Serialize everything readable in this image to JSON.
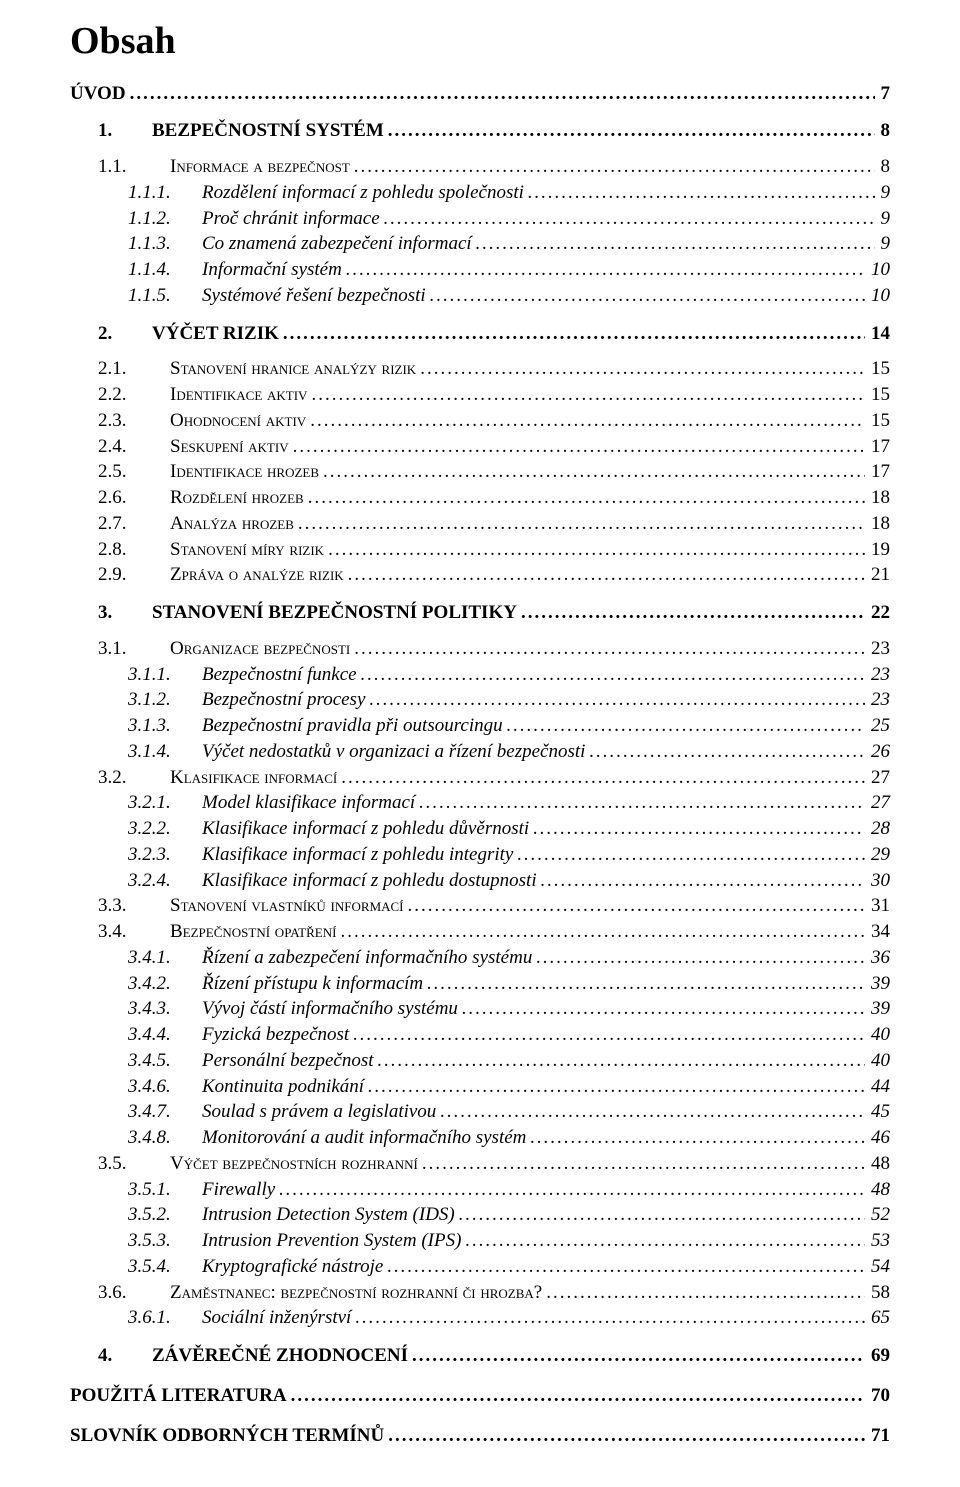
{
  "title": "Obsah",
  "toc": [
    {
      "level": 0,
      "num": "",
      "label": "Úvod",
      "page": "7",
      "nonum": true
    },
    {
      "level": 1,
      "num": "1.",
      "label": "BEZPEČNOSTNÍ SYSTÉM",
      "page": "8"
    },
    {
      "level": 2,
      "num": "1.1.",
      "label": "Informace a bezpečnost",
      "page": "8",
      "first": true
    },
    {
      "level": 3,
      "num": "1.1.1.",
      "label": "Rozdělení informací z pohledu společnosti",
      "page": "9"
    },
    {
      "level": 3,
      "num": "1.1.2.",
      "label": "Proč chránit informace",
      "page": "9"
    },
    {
      "level": 3,
      "num": "1.1.3.",
      "label": "Co znamená zabezpečení informací",
      "page": "9"
    },
    {
      "level": 3,
      "num": "1.1.4.",
      "label": "Informační systém",
      "page": "10"
    },
    {
      "level": 3,
      "num": "1.1.5.",
      "label": "Systémové řešení bezpečnosti",
      "page": "10"
    },
    {
      "level": 1,
      "num": "2.",
      "label": "VÝČET RIZIK",
      "page": "14"
    },
    {
      "level": 2,
      "num": "2.1.",
      "label": "Stanovení hranice analýzy rizik",
      "page": "15",
      "first": true
    },
    {
      "level": 2,
      "num": "2.2.",
      "label": "Identifikace aktiv",
      "page": "15"
    },
    {
      "level": 2,
      "num": "2.3.",
      "label": "Ohodnocení aktiv",
      "page": "15"
    },
    {
      "level": 2,
      "num": "2.4.",
      "label": "Seskupení aktiv",
      "page": "17"
    },
    {
      "level": 2,
      "num": "2.5.",
      "label": "Identifikace hrozeb",
      "page": "17"
    },
    {
      "level": 2,
      "num": "2.6.",
      "label": "Rozdělení hrozeb",
      "page": "18"
    },
    {
      "level": 2,
      "num": "2.7.",
      "label": "Analýza hrozeb",
      "page": "18"
    },
    {
      "level": 2,
      "num": "2.8.",
      "label": "Stanovení míry rizik",
      "page": "19"
    },
    {
      "level": 2,
      "num": "2.9.",
      "label": "Zpráva o analýze rizik",
      "page": "21"
    },
    {
      "level": 1,
      "num": "3.",
      "label": "STANOVENÍ BEZPEČNOSTNÍ POLITIKY",
      "page": "22"
    },
    {
      "level": 2,
      "num": "3.1.",
      "label": "Organizace bezpečnosti",
      "page": "23",
      "first": true
    },
    {
      "level": 3,
      "num": "3.1.1.",
      "label": "Bezpečnostní funkce",
      "page": "23"
    },
    {
      "level": 3,
      "num": "3.1.2.",
      "label": "Bezpečnostní procesy",
      "page": "23"
    },
    {
      "level": 3,
      "num": "3.1.3.",
      "label": "Bezpečnostní pravidla při outsourcingu",
      "page": "25"
    },
    {
      "level": 3,
      "num": "3.1.4.",
      "label": "Výčet nedostatků v organizaci a řízení bezpečnosti",
      "page": "26"
    },
    {
      "level": 2,
      "num": "3.2.",
      "label": "Klasifikace informací",
      "page": "27"
    },
    {
      "level": 3,
      "num": "3.2.1.",
      "label": "Model klasifikace informací",
      "page": "27"
    },
    {
      "level": 3,
      "num": "3.2.2.",
      "label": "Klasifikace informací z pohledu důvěrnosti",
      "page": "28"
    },
    {
      "level": 3,
      "num": "3.2.3.",
      "label": "Klasifikace informací z pohledu integrity",
      "page": "29"
    },
    {
      "level": 3,
      "num": "3.2.4.",
      "label": "Klasifikace informací z pohledu dostupnosti",
      "page": "30"
    },
    {
      "level": 2,
      "num": "3.3.",
      "label": "Stanovení vlastníků informací",
      "page": "31"
    },
    {
      "level": 2,
      "num": "3.4.",
      "label": "Bezpečnostní opatření",
      "page": "34"
    },
    {
      "level": 3,
      "num": "3.4.1.",
      "label": "Řízení a zabezpečení informačního systému",
      "page": "36"
    },
    {
      "level": 3,
      "num": "3.4.2.",
      "label": "Řízení přístupu k informacím",
      "page": "39"
    },
    {
      "level": 3,
      "num": "3.4.3.",
      "label": "Vývoj částí informačního systému",
      "page": "39"
    },
    {
      "level": 3,
      "num": "3.4.4.",
      "label": "Fyzická bezpečnost",
      "page": "40"
    },
    {
      "level": 3,
      "num": "3.4.5.",
      "label": "Personální bezpečnost",
      "page": "40"
    },
    {
      "level": 3,
      "num": "3.4.6.",
      "label": "Kontinuita podnikání",
      "page": "44"
    },
    {
      "level": 3,
      "num": "3.4.7.",
      "label": "Soulad s právem a legislativou",
      "page": "45"
    },
    {
      "level": 3,
      "num": "3.4.8.",
      "label": "Monitorování a audit informačního systém",
      "page": "46"
    },
    {
      "level": 2,
      "num": "3.5.",
      "label": "Výčet bezpečnostních rozhranní",
      "page": "48"
    },
    {
      "level": 3,
      "num": "3.5.1.",
      "label": "Firewally",
      "page": "48"
    },
    {
      "level": 3,
      "num": "3.5.2.",
      "label": "Intrusion Detection System (IDS)",
      "page": "52"
    },
    {
      "level": 3,
      "num": "3.5.3.",
      "label": "Intrusion Prevention System (IPS)",
      "page": "53"
    },
    {
      "level": 3,
      "num": "3.5.4.",
      "label": "Kryptografické nástroje",
      "page": "54"
    },
    {
      "level": 2,
      "num": "3.6.",
      "label": "Zaměstnanec: bezpečnostní rozhranní či hrozba?",
      "page": "58"
    },
    {
      "level": 3,
      "num": "3.6.1.",
      "label": "Sociální inženýrství",
      "page": "65"
    },
    {
      "level": 1,
      "num": "4.",
      "label": "ZÁVĚREČNÉ ZHODNOCENÍ",
      "page": "69"
    },
    {
      "level": 0,
      "num": "",
      "label": "Použitá literatura",
      "page": "70",
      "nonum": true
    },
    {
      "level": 0,
      "num": "",
      "label": "Slovník odborných termínů",
      "page": "71",
      "nonum": true
    }
  ]
}
